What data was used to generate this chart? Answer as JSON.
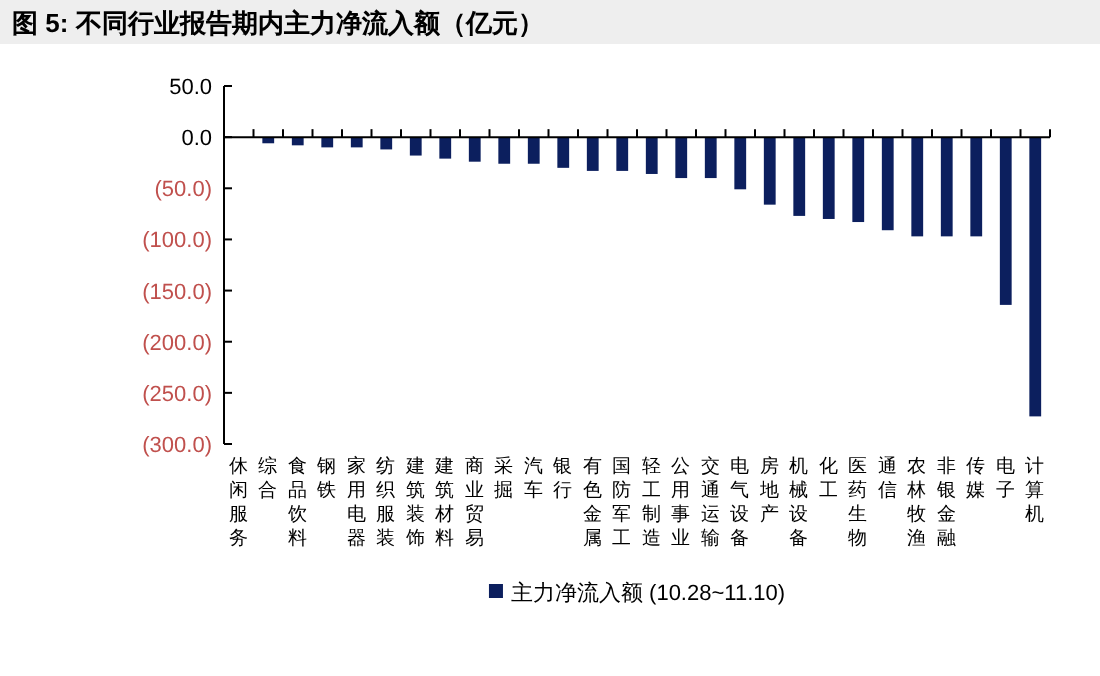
{
  "chart_data": {
    "type": "bar",
    "title": "图 5: 不同行业报告期内主力净流入额（亿元）",
    "categories": [
      "休闲服务",
      "综合",
      "食品饮料",
      "钢铁",
      "家用电器",
      "纺织服装",
      "建筑装饰",
      "建筑材料",
      "商业贸易",
      "采掘",
      "汽车",
      "银行",
      "有色金属",
      "国防军工",
      "轻工制造",
      "公用事业",
      "交通运输",
      "电气设备",
      "房地产",
      "机械设备",
      "化工",
      "医药生物",
      "通信",
      "农林牧渔",
      "非银金融",
      "传媒",
      "电子",
      "计算机"
    ],
    "series": [
      {
        "name": "主力净流入额 (10.28~11.10)",
        "color": "#0c1f5e",
        "values": [
          null,
          -6,
          -8,
          -10,
          -10,
          -12,
          -18,
          -21,
          -24,
          -26,
          -26,
          -30,
          -33,
          -33,
          -36,
          -40,
          -40,
          -51,
          -66,
          -77,
          -80,
          -83,
          -91,
          -97,
          -97,
          -97,
          -164,
          -273
        ]
      }
    ],
    "ylim": [
      -300,
      50
    ],
    "yticks": [
      {
        "value": 50,
        "label": "50.0"
      },
      {
        "value": 0,
        "label": "0.0"
      },
      {
        "value": -50,
        "label": "(50.0)"
      },
      {
        "value": -100,
        "label": "(100.0)"
      },
      {
        "value": -150,
        "label": "(150.0)"
      },
      {
        "value": -200,
        "label": "(200.0)"
      },
      {
        "value": -250,
        "label": "(250.0)"
      },
      {
        "value": -300,
        "label": "(300.0)"
      }
    ],
    "legend": "bottom"
  }
}
